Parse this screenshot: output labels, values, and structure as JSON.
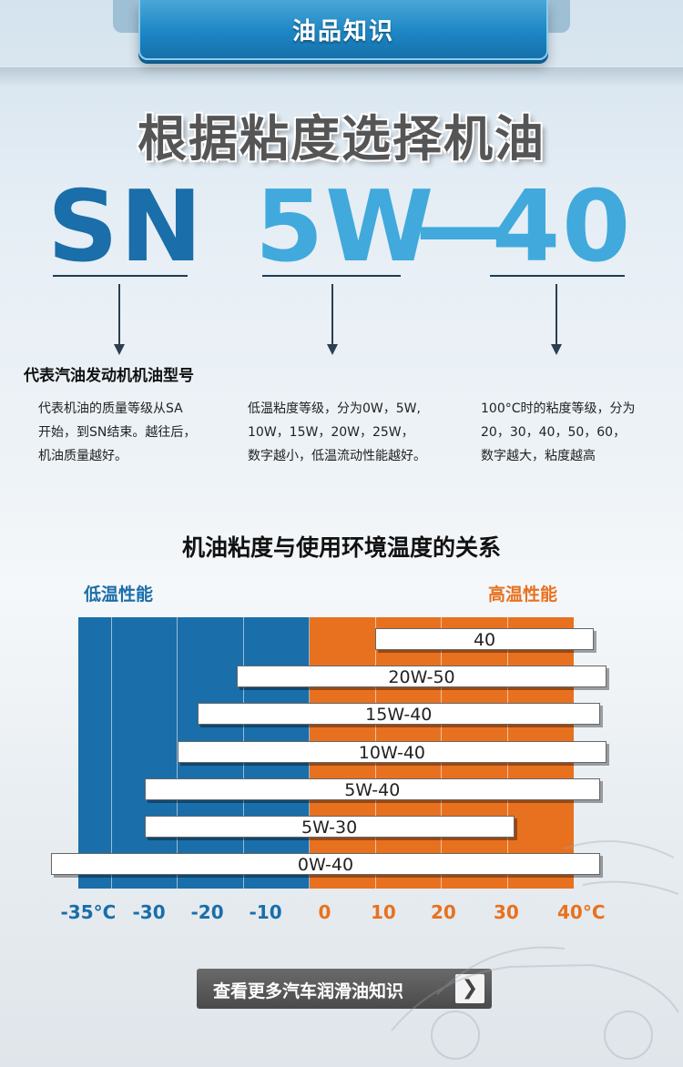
{
  "header": {
    "title": "油品知识"
  },
  "hero": {
    "title": "根据粘度选择机油",
    "code_grade": "SN",
    "code_low": "5W",
    "code_dash": "—",
    "code_high": "40",
    "grade_label": "代表汽油发动机机油型号",
    "desc_grade": [
      "代表机油的质量等级从SA",
      "开始，到SN结束。越往后，",
      "机油质量越好。"
    ],
    "desc_low": [
      "低温粘度等级，分为0W，5W,",
      "10W，15W，20W，25W，",
      "数字越小，低温流动性能越好。"
    ],
    "desc_high": [
      "100°C时的粘度等级，分为",
      "20，30，40，50，60，",
      "数字越大，粘度越高"
    ]
  },
  "chart_section": {
    "subtitle": "机油粘度与使用环境温度的关系",
    "low_label": "低温性能",
    "high_label": "高温性能"
  },
  "chart_data": {
    "type": "bar",
    "orientation": "horizontal-range",
    "xlabel": "",
    "ylabel": "",
    "xlim": [
      -35,
      40
    ],
    "x_ticks": [
      "-35°C",
      "-30",
      "-20",
      "-10",
      "0",
      "10",
      "20",
      "30",
      "40°C"
    ],
    "x_tick_values": [
      -35,
      -30,
      -20,
      -10,
      0,
      10,
      20,
      30,
      40
    ],
    "colors": {
      "low": "#1a6ea9",
      "high": "#e8711f"
    },
    "series": [
      {
        "name": "40",
        "min": 10,
        "max": 43
      },
      {
        "name": "20W-50",
        "min": -11,
        "max": 45
      },
      {
        "name": "15W-40",
        "min": -17,
        "max": 44
      },
      {
        "name": "10W-40",
        "min": -20,
        "max": 45
      },
      {
        "name": "5W-40",
        "min": -25,
        "max": 44
      },
      {
        "name": "5W-30",
        "min": -25,
        "max": 31
      },
      {
        "name": "0W-40",
        "min": -45,
        "max": 44
      }
    ]
  },
  "cta": {
    "label": "查看更多汽车润滑油知识",
    "arrow": "❯"
  }
}
